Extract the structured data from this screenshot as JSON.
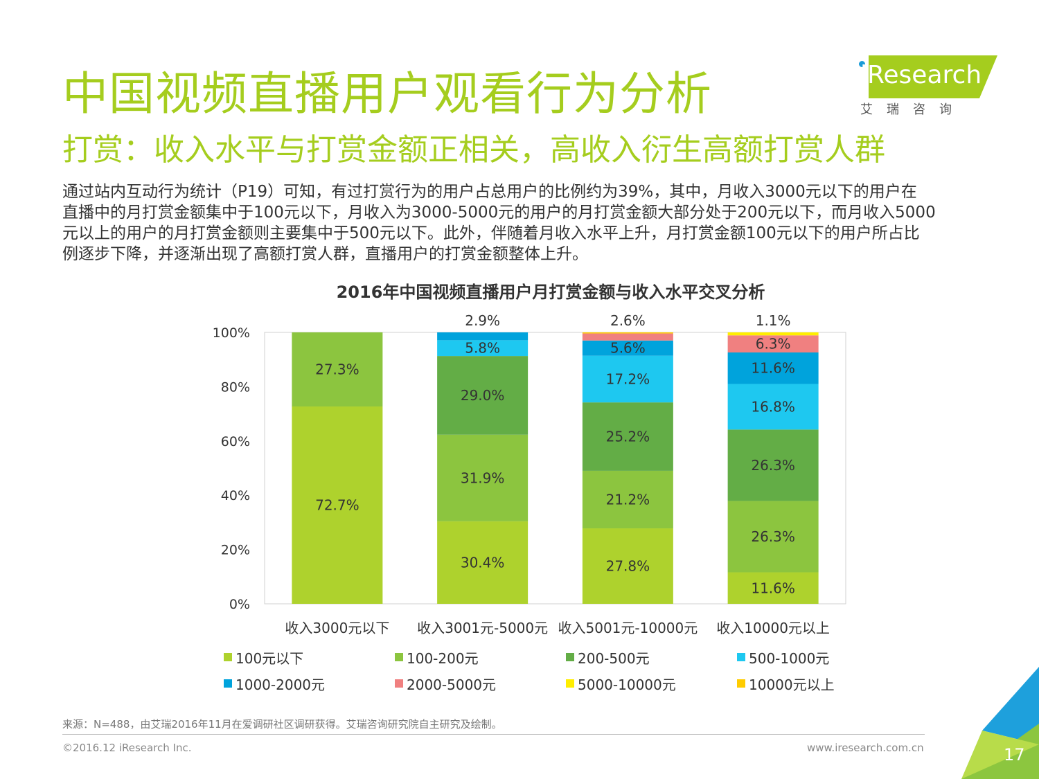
{
  "title": "中国视频直播用户观看行为分析",
  "subtitle": "打赏：收入水平与打赏金额正相关，高收入衍生高额打赏人群",
  "logo": {
    "name": "iResearch",
    "sub": "艾瑞咨询"
  },
  "body_lines": [
    "通过站内互动行为统计（P19）可知，有过打赏行为的用户占总用户的比例约为39%，其中，月收入3000元以下的用户在",
    "直播中的月打赏金额集中于100元以下，月收入为3000-5000元的用户的月打赏金额大部分处于200元以下，而月收入5000",
    "元以上的用户的月打赏金额则主要集中于500元以下。此外，伴随着月收入水平上升，月打赏金额100元以下的用户所占比",
    "例逐步下降，并逐渐出现了高额打赏人群，直播用户的打赏金额整体上升。"
  ],
  "chart_data": {
    "type": "bar",
    "stacked": true,
    "title": "2016年中国视频直播用户月打赏金额与收入水平交叉分析",
    "categories": [
      "收入3000元以下",
      "收入3001元-5000元",
      "收入5001元-10000元",
      "收入10000元以上"
    ],
    "ylim": [
      0,
      100
    ],
    "yticks": [
      "0%",
      "20%",
      "40%",
      "60%",
      "80%",
      "100%"
    ],
    "legend_position": "bottom",
    "series": [
      {
        "name": "100元以下",
        "color": "#aed22d",
        "values": [
          72.7,
          30.4,
          27.8,
          11.6
        ],
        "labels": [
          "72.7%",
          "30.4%",
          "27.8%",
          "11.6%"
        ]
      },
      {
        "name": "100-200元",
        "color": "#8cc53f",
        "values": [
          27.3,
          31.9,
          21.2,
          26.3
        ],
        "labels": [
          "27.3%",
          "31.9%",
          "21.2%",
          "26.3%"
        ]
      },
      {
        "name": "200-500元",
        "color": "#63ad46",
        "values": [
          0,
          29.0,
          25.2,
          26.3
        ],
        "labels": [
          "",
          "29.0%",
          "25.2%",
          "26.3%"
        ]
      },
      {
        "name": "500-1000元",
        "color": "#1ec8f0",
        "values": [
          0,
          5.8,
          17.2,
          16.8
        ],
        "labels": [
          "",
          "5.8%",
          "17.2%",
          "16.8%"
        ]
      },
      {
        "name": "1000-2000元",
        "color": "#00a3dc",
        "values": [
          0,
          2.9,
          5.6,
          11.6
        ],
        "labels": [
          "",
          "2.9%",
          "5.6%",
          "11.6%"
        ]
      },
      {
        "name": "2000-5000元",
        "color": "#f08080",
        "values": [
          0,
          0,
          2.6,
          6.3
        ],
        "labels": [
          "",
          "",
          "2.6%",
          "6.3%"
        ]
      },
      {
        "name": "5000-10000元",
        "color": "#ffee00",
        "values": [
          0,
          0,
          0,
          1.1
        ],
        "labels": [
          "",
          "",
          "",
          "1.1%"
        ]
      },
      {
        "name": "10000元以上",
        "color": "#ffcc00",
        "values": [
          0,
          0,
          0,
          0
        ],
        "labels": [
          "",
          "",
          "",
          ""
        ]
      }
    ]
  },
  "footer": {
    "source": "来源：N=488，由艾瑞2016年11月在爱调研社区调研获得。艾瑞咨询研究院自主研究及绘制。",
    "copyright": "©2016.12 iResearch Inc.",
    "website": "www.iresearch.com.cn",
    "page": "17"
  },
  "colors": {
    "accent": "#a5cd1e",
    "corner_blue": "#1ea0dc",
    "corner_green": "#8cc63f"
  }
}
